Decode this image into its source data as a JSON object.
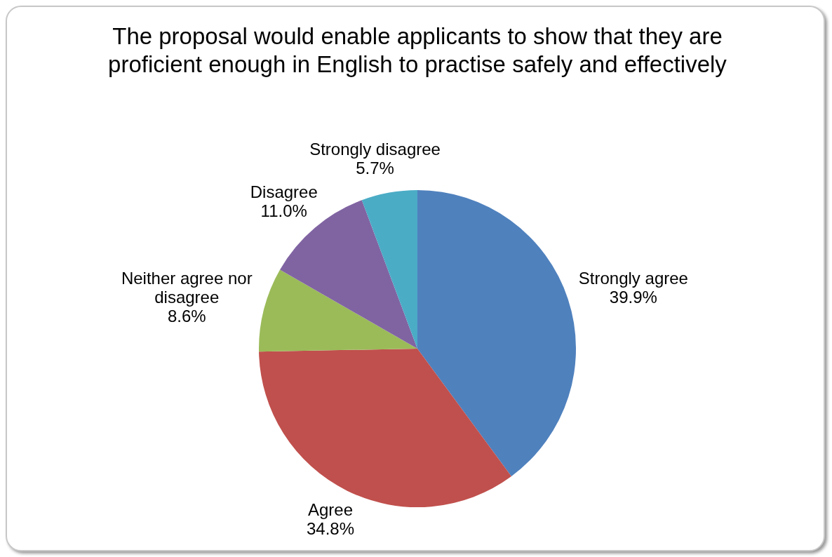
{
  "chart_data": {
    "type": "pie",
    "title": "The proposal would enable applicants to show that they are proficient enough in English to practise safely and effectively",
    "categories": [
      "Strongly agree",
      "Agree",
      "Neither agree nor disagree",
      "Disagree",
      "Strongly disagree"
    ],
    "values": [
      39.9,
      34.8,
      8.6,
      11.0,
      5.7
    ],
    "value_labels": [
      "39.9%",
      "34.8%",
      "8.6%",
      "11.0%",
      "5.7%"
    ],
    "colors": [
      "#4f81bd",
      "#c0504d",
      "#9bbb59",
      "#8064a2",
      "#4bacc6"
    ],
    "legend": false
  }
}
